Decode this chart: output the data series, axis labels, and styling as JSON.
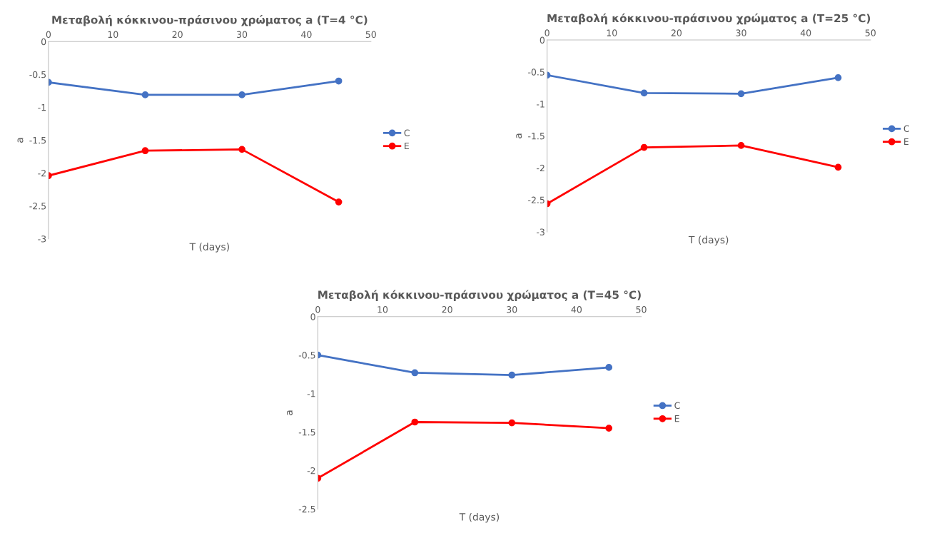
{
  "chart_data": [
    {
      "type": "line",
      "title": "Μεταβολή κόκκινου-πράσινου χρώματος a (T=4 °C)",
      "xlabel": "T (days)",
      "ylabel": "a",
      "x": [
        0,
        15,
        30,
        45
      ],
      "xlim": [
        0,
        50
      ],
      "xticks": [
        0,
        10,
        20,
        30,
        40,
        50
      ],
      "ylim": [
        -3,
        0
      ],
      "yticks": [
        -3,
        -2.5,
        -2,
        -1.5,
        -1,
        -0.5,
        0
      ],
      "marker": "circle",
      "legend": "right",
      "grid": false,
      "series": [
        {
          "name": "C",
          "color": "#4472c4",
          "values": [
            -0.62,
            -0.81,
            -0.81,
            -0.6
          ]
        },
        {
          "name": "E",
          "color": "#ff0000",
          "values": [
            -2.04,
            -1.66,
            -1.64,
            -2.44
          ]
        }
      ]
    },
    {
      "type": "line",
      "title": "Μεταβολή κόκκινου-πράσινου χρώματος a (T=25 °C)",
      "xlabel": "T (days)",
      "ylabel": "a",
      "x": [
        0,
        15,
        30,
        45
      ],
      "xlim": [
        0,
        50
      ],
      "xticks": [
        0,
        10,
        20,
        30,
        40,
        50
      ],
      "ylim": [
        -3,
        0
      ],
      "yticks": [
        -3,
        -2.5,
        -2,
        -1.5,
        -1,
        -0.5,
        0
      ],
      "marker": "circle",
      "legend": "right",
      "grid": false,
      "series": [
        {
          "name": "C",
          "color": "#4472c4",
          "values": [
            -0.55,
            -0.83,
            -0.84,
            -0.59
          ]
        },
        {
          "name": "E",
          "color": "#ff0000",
          "values": [
            -2.56,
            -1.68,
            -1.65,
            -1.99
          ]
        }
      ]
    },
    {
      "type": "line",
      "title": "Μεταβολή κόκκινου-πράσινου χρώματος a (T=45 °C)",
      "xlabel": "T (days)",
      "ylabel": "a",
      "x": [
        0,
        15,
        30,
        45
      ],
      "xlim": [
        0,
        50
      ],
      "xticks": [
        0,
        10,
        20,
        30,
        40,
        50
      ],
      "ylim": [
        -2.5,
        0
      ],
      "yticks": [
        -2.5,
        -2,
        -1.5,
        -1,
        -0.5,
        0
      ],
      "marker": "circle",
      "legend": "right",
      "grid": false,
      "series": [
        {
          "name": "C",
          "color": "#4472c4",
          "values": [
            -0.5,
            -0.73,
            -0.76,
            -0.66
          ]
        },
        {
          "name": "E",
          "color": "#ff0000",
          "values": [
            -2.1,
            -1.37,
            -1.38,
            -1.45
          ]
        }
      ]
    }
  ]
}
